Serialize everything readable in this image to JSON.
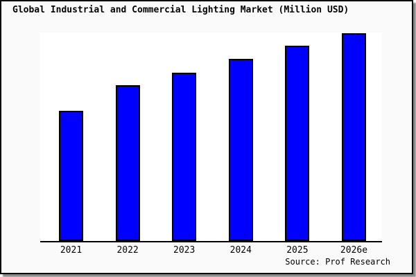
{
  "title": "Global Industrial and Commercial Lighting Market (Million USD)",
  "source_label": "Source: Prof Research",
  "colors": {
    "bar_fill": "#0000ff",
    "bar_border": "#000000",
    "frame_background": "#fafafa",
    "plot_background": "#ffffff",
    "axis": "#000000",
    "frame_shadow": "#888888"
  },
  "chart_data": {
    "type": "bar",
    "title": "Global Industrial and Commercial Lighting Market (Million USD)",
    "categories": [
      "2021",
      "2022",
      "2023",
      "2024",
      "2025",
      "2026e"
    ],
    "values": [
      62.7,
      75.0,
      81.0,
      87.7,
      94.0,
      100.0
    ],
    "value_note": "No y-axis scale or data labels are shown in the figure; values are bar heights measured relative to the tallest bar (2026e = 100).",
    "xlabel": "",
    "ylabel": "",
    "ylim": [
      0,
      101
    ],
    "grid": false,
    "legend_position": "none",
    "source_label": "Source: Prof Research"
  }
}
